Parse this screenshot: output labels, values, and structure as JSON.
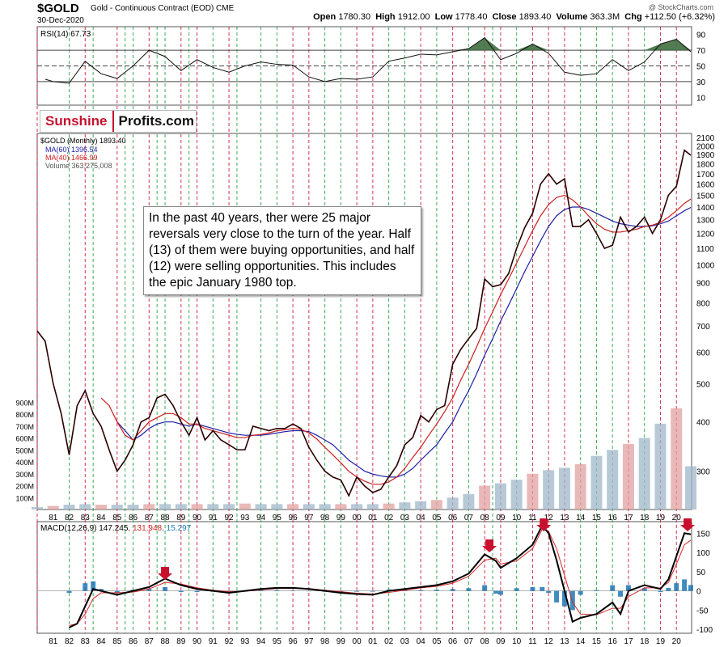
{
  "header": {
    "symbol": "$GOLD",
    "subtitle": "Gold - Continuous Contract (EOD) CME",
    "date": "30-Dec-2020",
    "watermark": "@ StockCharts.com",
    "open_label": "Open",
    "open": "1780.30",
    "high_label": "High",
    "high": "1912.00",
    "low_label": "Low",
    "low": "1778.40",
    "close_label": "Close",
    "close": "1893.40",
    "volume_label": "Volume",
    "volume": "363.3M",
    "chg_label": "Chg",
    "chg": "+112.50 (+6.32%)"
  },
  "logo": {
    "part1": "Sunshine",
    "part2": "Profits.com"
  },
  "annotation": "In the past 40 years, ther were 25 major reversals very close to the turn of the year. Half (13) of them were buying opportunities, and half (12) were selling opportunities. This includes the epic January 1980 top.",
  "colors": {
    "red_line": "#c8102e",
    "green_line": "#1f9d3a",
    "ma60": "#1f1fa8",
    "ma40": "#cc1e1e",
    "macd_signal": "#d62728",
    "histogram": "#1f77b4",
    "vol_up": "#9fb7c9",
    "vol_down": "#e2a0a0",
    "rsi_fill": "#3f6e3f",
    "arrow": "#c8102e"
  },
  "chart_data": [
    {
      "type": "line",
      "name": "rsi",
      "legend": "RSI(14) 67.73",
      "y_ticks": [
        10,
        30,
        50,
        70,
        90
      ],
      "reference_lines": [
        30,
        50,
        70
      ],
      "ylim": [
        0,
        100
      ],
      "x": [
        1980.5,
        1981,
        1982,
        1983,
        1984,
        1985,
        1986,
        1987,
        1988,
        1989,
        1990,
        1991,
        1992,
        1993,
        1994,
        1995,
        1996,
        1997,
        1998,
        1999,
        2000,
        2001,
        2002,
        2003,
        2004,
        2005,
        2006,
        2007,
        2008,
        2009,
        2010,
        2011,
        2012,
        2013,
        2014,
        2015,
        2016,
        2017,
        2018,
        2019,
        2020,
        2020.9
      ],
      "values": [
        33,
        30,
        28,
        56,
        40,
        34,
        50,
        70,
        62,
        44,
        58,
        48,
        42,
        50,
        55,
        52,
        51,
        36,
        30,
        34,
        33,
        36,
        56,
        60,
        65,
        64,
        68,
        72,
        86,
        58,
        66,
        78,
        66,
        42,
        38,
        40,
        58,
        44,
        55,
        78,
        84,
        68
      ]
    },
    {
      "type": "line",
      "name": "price",
      "legend": [
        "$GOLD (Monthly) 1893.40",
        "MA(60) 1396.54",
        "MA(40) 1466.99",
        "Volume 363,275,008"
      ],
      "y_scale": "log",
      "ylim": [
        240,
        2150
      ],
      "y_ticks": [
        300,
        400,
        500,
        600,
        700,
        800,
        900,
        1000,
        1100,
        1200,
        1300,
        1400,
        1500,
        1600,
        1700,
        1800,
        1900,
        2000,
        2100
      ],
      "x_tick_labels": [
        "81",
        "82",
        "83",
        "84",
        "85",
        "86",
        "87",
        "88",
        "89",
        "90",
        "91",
        "92",
        "93",
        "94",
        "95",
        "96",
        "97",
        "98",
        "99",
        "00",
        "01",
        "02",
        "03",
        "04",
        "05",
        "06",
        "07",
        "08",
        "09",
        "10",
        "11",
        "12",
        "13",
        "14",
        "15",
        "16",
        "17",
        "18",
        "19",
        "20"
      ],
      "x": [
        1980.0,
        1980.5,
        1981.0,
        1981.5,
        1982.0,
        1982.5,
        1983.0,
        1983.5,
        1984.0,
        1984.5,
        1985.0,
        1985.5,
        1986.0,
        1986.5,
        1987.0,
        1987.5,
        1988.0,
        1988.5,
        1989.0,
        1989.5,
        1990.0,
        1990.5,
        1991.0,
        1991.5,
        1992.0,
        1992.5,
        1993.0,
        1993.5,
        1994.0,
        1994.5,
        1995.0,
        1995.5,
        1996.0,
        1996.5,
        1997.0,
        1997.5,
        1998.0,
        1998.5,
        1999.0,
        1999.5,
        2000.0,
        2000.5,
        2001.0,
        2001.5,
        2002.0,
        2002.5,
        2003.0,
        2003.5,
        2004.0,
        2004.5,
        2005.0,
        2005.5,
        2006.0,
        2006.5,
        2007.0,
        2007.5,
        2008.0,
        2008.5,
        2009.0,
        2009.5,
        2010.0,
        2010.5,
        2011.0,
        2011.5,
        2012.0,
        2012.5,
        2013.0,
        2013.5,
        2014.0,
        2014.5,
        2015.0,
        2015.5,
        2016.0,
        2016.5,
        2017.0,
        2017.5,
        2018.0,
        2018.5,
        2019.0,
        2019.5,
        2020.0,
        2020.5,
        2020.9
      ],
      "close": [
        680,
        640,
        500,
        420,
        330,
        440,
        480,
        420,
        390,
        340,
        300,
        320,
        350,
        400,
        410,
        460,
        470,
        440,
        400,
        370,
        410,
        360,
        380,
        360,
        350,
        340,
        340,
        390,
        385,
        380,
        385,
        385,
        395,
        385,
        345,
        320,
        300,
        290,
        285,
        260,
        290,
        275,
        265,
        270,
        290,
        310,
        350,
        365,
        415,
        400,
        430,
        440,
        560,
        610,
        650,
        690,
        920,
        880,
        890,
        950,
        1100,
        1240,
        1350,
        1600,
        1700,
        1600,
        1650,
        1250,
        1250,
        1300,
        1200,
        1100,
        1120,
        1320,
        1210,
        1250,
        1320,
        1200,
        1300,
        1500,
        1580,
        1950,
        1893
      ],
      "ma60": [
        null,
        null,
        null,
        null,
        null,
        null,
        null,
        null,
        null,
        null,
        400,
        380,
        360,
        370,
        385,
        395,
        400,
        400,
        395,
        390,
        395,
        390,
        385,
        380,
        375,
        372,
        370,
        370,
        370,
        372,
        375,
        378,
        380,
        380,
        378,
        370,
        360,
        350,
        335,
        320,
        310,
        300,
        295,
        292,
        290,
        290,
        295,
        305,
        320,
        335,
        350,
        375,
        400,
        440,
        480,
        530,
        590,
        650,
        720,
        790,
        870,
        960,
        1050,
        1150,
        1250,
        1330,
        1380,
        1400,
        1400,
        1380,
        1350,
        1320,
        1290,
        1270,
        1260,
        1250,
        1250,
        1255,
        1270,
        1290,
        1330,
        1370,
        1396.54
      ],
      "ma40": [
        null,
        null,
        null,
        null,
        null,
        null,
        null,
        null,
        460,
        440,
        400,
        370,
        360,
        380,
        400,
        410,
        420,
        420,
        410,
        395,
        395,
        385,
        380,
        375,
        370,
        365,
        365,
        370,
        372,
        375,
        380,
        382,
        385,
        383,
        375,
        362,
        345,
        330,
        315,
        300,
        290,
        283,
        278,
        278,
        282,
        290,
        305,
        325,
        345,
        370,
        395,
        425,
        460,
        510,
        560,
        620,
        690,
        760,
        840,
        920,
        1010,
        1110,
        1220,
        1330,
        1420,
        1480,
        1500,
        1460,
        1400,
        1330,
        1270,
        1230,
        1210,
        1210,
        1220,
        1230,
        1250,
        1260,
        1280,
        1320,
        1370,
        1430,
        1466.99
      ]
    },
    {
      "type": "bar",
      "name": "volume",
      "y_ticks_labels": [
        "100M",
        "200M",
        "300M",
        "400M",
        "500M",
        "600M",
        "700M",
        "800M",
        "900M"
      ],
      "ylim": [
        0,
        950
      ],
      "x": [
        1980.0,
        1981.0,
        1982.0,
        1983.0,
        1984.0,
        1985.0,
        1986.0,
        1987.0,
        1988.0,
        1989.0,
        1990.0,
        1991.0,
        1992.0,
        1993.0,
        1994.0,
        1995.0,
        1996.0,
        1997.0,
        1998.0,
        1999.0,
        2000.0,
        2001.0,
        2002.0,
        2003.0,
        2004.0,
        2005.0,
        2006.0,
        2007.0,
        2008.0,
        2009.0,
        2010.0,
        2011.0,
        2012.0,
        2013.0,
        2014.0,
        2015.0,
        2016.0,
        2017.0,
        2018.0,
        2019.0,
        2020.0,
        2020.9
      ],
      "values": [
        20,
        30,
        40,
        45,
        40,
        40,
        40,
        45,
        45,
        45,
        45,
        45,
        45,
        50,
        45,
        45,
        45,
        45,
        45,
        45,
        45,
        45,
        50,
        60,
        70,
        80,
        100,
        130,
        200,
        220,
        250,
        300,
        330,
        350,
        380,
        450,
        500,
        550,
        600,
        720,
        850,
        363
      ]
    },
    {
      "type": "line",
      "name": "macd",
      "legend": [
        "MACD(12,26,9)",
        "147.245",
        "131.948",
        "15.297"
      ],
      "ylim": [
        -110,
        180
      ],
      "y_ticks": [
        -100,
        -50,
        0,
        50,
        100,
        150
      ],
      "x": [
        1982.0,
        1982.5,
        1983.0,
        1983.5,
        1984.0,
        1985.0,
        1986.0,
        1987.0,
        1988.0,
        1989.0,
        1990.0,
        1991.0,
        1992.0,
        1993.0,
        1994.0,
        1995.0,
        1996.0,
        1997.0,
        1998.0,
        1999.0,
        2000.0,
        2001.0,
        2002.0,
        2003.0,
        2004.0,
        2005.0,
        2006.0,
        2007.0,
        2008.0,
        2008.7,
        2009.0,
        2010.0,
        2011.0,
        2011.6,
        2012.0,
        2012.5,
        2013.0,
        2013.5,
        2014.0,
        2015.0,
        2016.0,
        2016.5,
        2017.0,
        2018.0,
        2019.0,
        2019.5,
        2020.0,
        2020.5,
        2020.9
      ],
      "macd": [
        -95,
        -85,
        -40,
        5,
        0,
        -10,
        0,
        10,
        32,
        15,
        5,
        0,
        -5,
        0,
        5,
        8,
        8,
        5,
        0,
        -5,
        -8,
        -10,
        0,
        5,
        10,
        15,
        25,
        45,
        95,
        78,
        60,
        85,
        120,
        170,
        150,
        80,
        0,
        -80,
        -70,
        -60,
        -30,
        -60,
        0,
        15,
        5,
        30,
        90,
        150,
        147.245
      ],
      "signal": [
        -90,
        -85,
        -60,
        -20,
        -5,
        -5,
        -3,
        5,
        22,
        18,
        8,
        2,
        -2,
        -1,
        3,
        6,
        7,
        6,
        2,
        -2,
        -6,
        -8,
        -4,
        2,
        8,
        12,
        20,
        38,
        80,
        85,
        70,
        78,
        110,
        160,
        155,
        110,
        40,
        -30,
        -60,
        -62,
        -45,
        -45,
        -15,
        8,
        8,
        22,
        70,
        120,
        131.948
      ],
      "histogram_last": 15.297
    }
  ],
  "cycle_markers": {
    "red_years": [
      1980.0,
      1983.0,
      1985.0,
      1987.0,
      1989.0,
      1990.0,
      1992.0,
      1996.0,
      1997.0,
      2000.0,
      2001.0,
      2004.0,
      2006.0,
      2008.0,
      2009.0,
      2011.0,
      2012.0,
      2013.0,
      2017.0,
      2019.0,
      2020.0
    ],
    "green_years": [
      1982.0,
      1983.5,
      1985.5,
      1986.0,
      1987.5,
      1988.0,
      1989.5,
      1991.0,
      1992.5,
      1994.0,
      1995.0,
      1998.0,
      1999.0,
      2002.0,
      2003.0,
      2005.0,
      2007.0,
      2008.5,
      2010.0,
      2014.0,
      2015.0,
      2016.0,
      2018.0
    ],
    "macd_arrows": [
      1988.0,
      2008.3,
      2011.7,
      2020.7
    ]
  }
}
